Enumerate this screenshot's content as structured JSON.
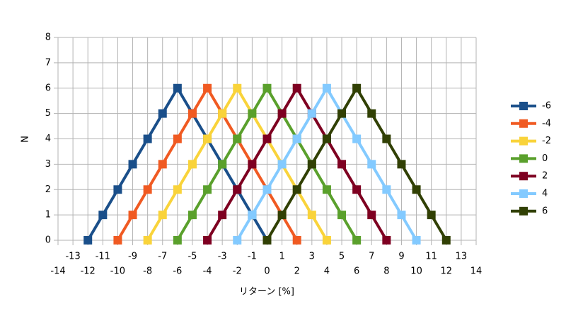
{
  "chart_data": {
    "type": "line",
    "x_label": "リターン [%]",
    "y_label": "N",
    "xlim": [
      -14,
      14
    ],
    "xticks": [
      -14,
      -13,
      -12,
      -11,
      -10,
      -9,
      -8,
      -7,
      -6,
      -5,
      -4,
      -3,
      -2,
      -1,
      0,
      1,
      2,
      3,
      4,
      5,
      6,
      7,
      8,
      9,
      10,
      11,
      12,
      13,
      14
    ],
    "ylim": [
      0,
      8
    ],
    "yticks": [
      0,
      1,
      2,
      3,
      4,
      5,
      6,
      7,
      8
    ],
    "grid": true,
    "legend": "right",
    "series": [
      {
        "name": "-6",
        "color": "#1a4f8a",
        "x": [
          -12,
          -11,
          -10,
          -9,
          -8,
          -7,
          -6,
          -5,
          -4,
          -3,
          -2,
          -1,
          0
        ],
        "values": [
          0,
          1,
          2,
          3,
          4,
          5,
          6,
          5,
          4,
          3,
          2,
          1,
          0
        ]
      },
      {
        "name": "-4",
        "color": "#f05a22",
        "x": [
          -10,
          -9,
          -8,
          -7,
          -6,
          -5,
          -4,
          -3,
          -2,
          -1,
          0,
          1,
          2
        ],
        "values": [
          0,
          1,
          2,
          3,
          4,
          5,
          6,
          5,
          4,
          3,
          2,
          1,
          0
        ]
      },
      {
        "name": "-2",
        "color": "#f9d33a",
        "x": [
          -8,
          -7,
          -6,
          -5,
          -4,
          -3,
          -2,
          -1,
          0,
          1,
          2,
          3,
          4
        ],
        "values": [
          0,
          1,
          2,
          3,
          4,
          5,
          6,
          5,
          4,
          3,
          2,
          1,
          0
        ]
      },
      {
        "name": "0",
        "color": "#5aa02c",
        "x": [
          -6,
          -5,
          -4,
          -3,
          -2,
          -1,
          0,
          1,
          2,
          3,
          4,
          5,
          6
        ],
        "values": [
          0,
          1,
          2,
          3,
          4,
          5,
          6,
          5,
          4,
          3,
          2,
          1,
          0
        ]
      },
      {
        "name": "2",
        "color": "#7e0021",
        "x": [
          -4,
          -3,
          -2,
          -1,
          0,
          1,
          2,
          3,
          4,
          5,
          6,
          7,
          8
        ],
        "values": [
          0,
          1,
          2,
          3,
          4,
          5,
          6,
          5,
          4,
          3,
          2,
          1,
          0
        ]
      },
      {
        "name": "4",
        "color": "#83caff",
        "x": [
          -2,
          -1,
          0,
          1,
          2,
          3,
          4,
          5,
          6,
          7,
          8,
          9,
          10
        ],
        "values": [
          0,
          1,
          2,
          3,
          4,
          5,
          6,
          5,
          4,
          3,
          2,
          1,
          0
        ]
      },
      {
        "name": "6",
        "color": "#314004",
        "x": [
          0,
          1,
          2,
          3,
          4,
          5,
          6,
          7,
          8,
          9,
          10,
          11,
          12
        ],
        "values": [
          0,
          1,
          2,
          3,
          4,
          5,
          6,
          5,
          4,
          3,
          2,
          1,
          0
        ]
      }
    ]
  }
}
